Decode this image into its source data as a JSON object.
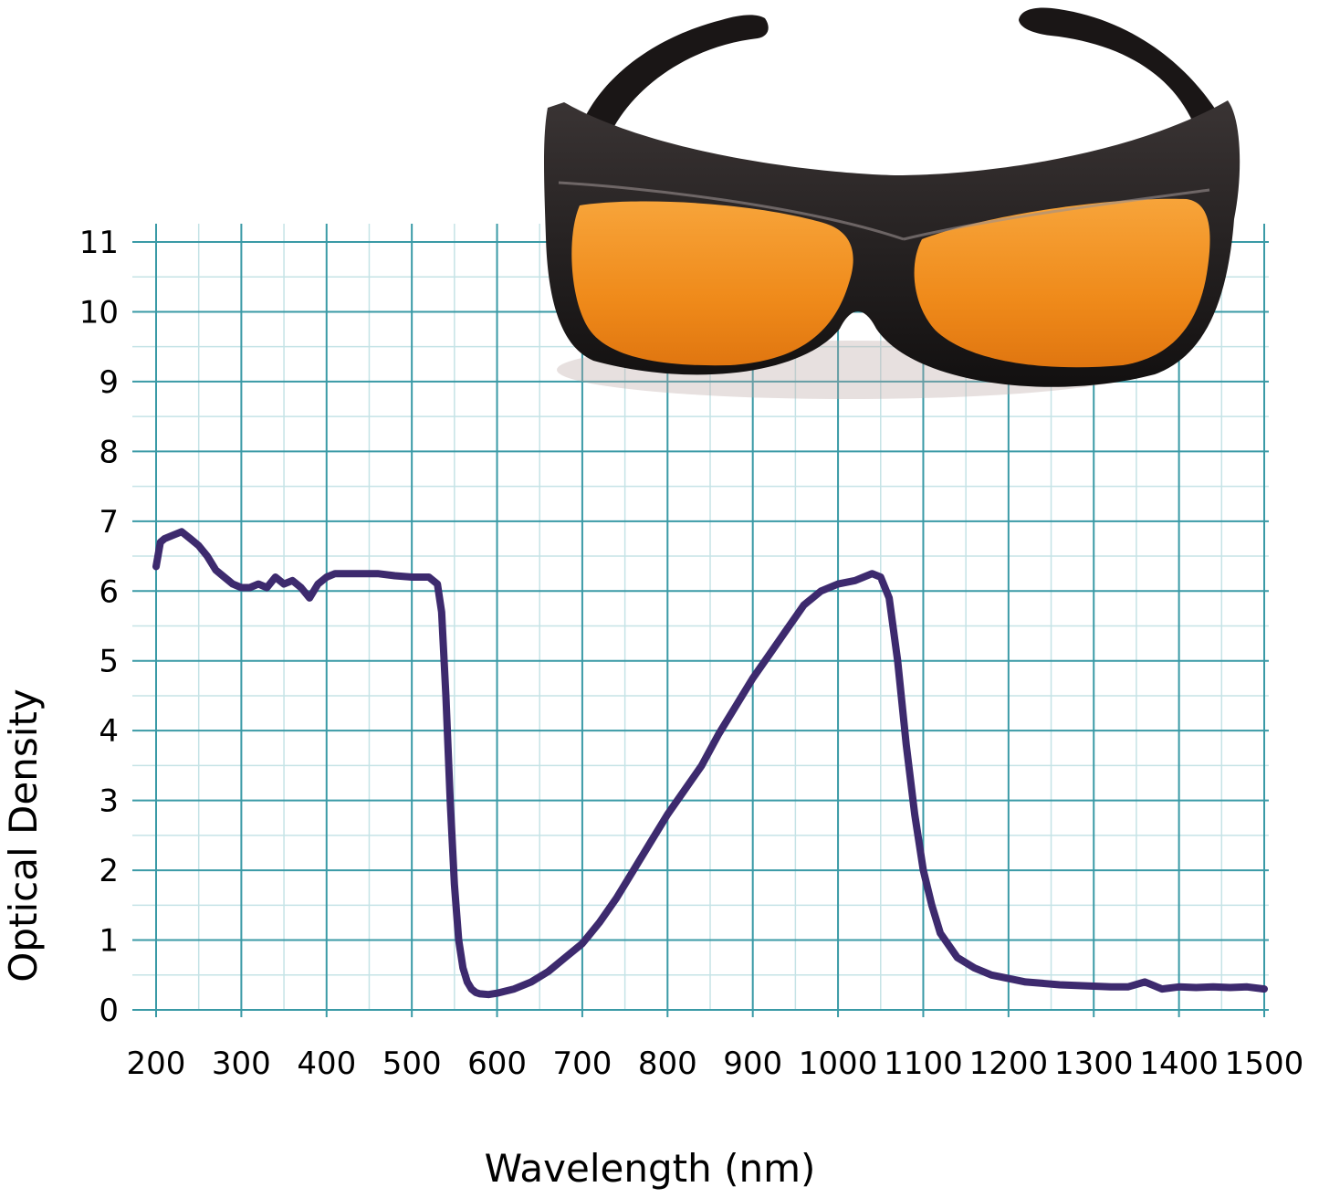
{
  "chart_data": {
    "type": "line",
    "title": "",
    "xlabel": "Wavelength (nm)",
    "ylabel": "Optical Density",
    "xlim": [
      200,
      1500
    ],
    "ylim": [
      0,
      11
    ],
    "x_ticks": [
      "200",
      "300",
      "400",
      "500",
      "600",
      "700",
      "800",
      "900",
      "1000",
      "1100",
      "1200",
      "1300",
      "1400",
      "1500"
    ],
    "y_ticks": [
      "0",
      "1",
      "2",
      "3",
      "4",
      "5",
      "6",
      "7",
      "8",
      "9",
      "10",
      "11"
    ],
    "grid": true,
    "legend": "none",
    "colors": {
      "line": "#3d2a6e",
      "grid_major": "#3a9aa6",
      "grid_minor": "#c5e3e6",
      "lens": "#f08a18",
      "frame": "#1c1717"
    },
    "image": "laser-safety-glasses",
    "series": [
      {
        "x": [
          200,
          205,
          210,
          220,
          230,
          240,
          250,
          260,
          270,
          280,
          290,
          300,
          310,
          320,
          330,
          340,
          350,
          360,
          370,
          380,
          390,
          400,
          410,
          420,
          440,
          460,
          480,
          500,
          520,
          530,
          535,
          540,
          545,
          550,
          555,
          560,
          565,
          570,
          575,
          580,
          590,
          600,
          620,
          640,
          660,
          680,
          700,
          720,
          740,
          760,
          780,
          800,
          820,
          840,
          860,
          880,
          900,
          920,
          940,
          960,
          980,
          1000,
          1020,
          1030,
          1040,
          1050,
          1060,
          1070,
          1080,
          1090,
          1100,
          1110,
          1120,
          1140,
          1160,
          1180,
          1200,
          1220,
          1240,
          1260,
          1280,
          1300,
          1320,
          1340,
          1360,
          1370,
          1380,
          1400,
          1420,
          1440,
          1460,
          1480,
          1500
        ],
        "y": [
          6.35,
          6.7,
          6.75,
          6.8,
          6.85,
          6.75,
          6.65,
          6.5,
          6.3,
          6.2,
          6.1,
          6.05,
          6.05,
          6.1,
          6.05,
          6.2,
          6.1,
          6.15,
          6.05,
          5.9,
          6.1,
          6.2,
          6.25,
          6.25,
          6.25,
          6.25,
          6.22,
          6.2,
          6.2,
          6.1,
          5.7,
          4.5,
          3.0,
          1.8,
          1.0,
          0.6,
          0.4,
          0.3,
          0.25,
          0.23,
          0.22,
          0.24,
          0.3,
          0.4,
          0.55,
          0.75,
          0.95,
          1.25,
          1.6,
          2.0,
          2.4,
          2.8,
          3.15,
          3.5,
          3.95,
          4.35,
          4.75,
          5.1,
          5.45,
          5.8,
          6.0,
          6.1,
          6.15,
          6.2,
          6.25,
          6.2,
          5.9,
          5.0,
          3.8,
          2.8,
          2.0,
          1.5,
          1.1,
          0.75,
          0.6,
          0.5,
          0.45,
          0.4,
          0.38,
          0.36,
          0.35,
          0.34,
          0.33,
          0.33,
          0.4,
          0.35,
          0.3,
          0.33,
          0.32,
          0.33,
          0.32,
          0.33,
          0.3
        ]
      }
    ]
  }
}
